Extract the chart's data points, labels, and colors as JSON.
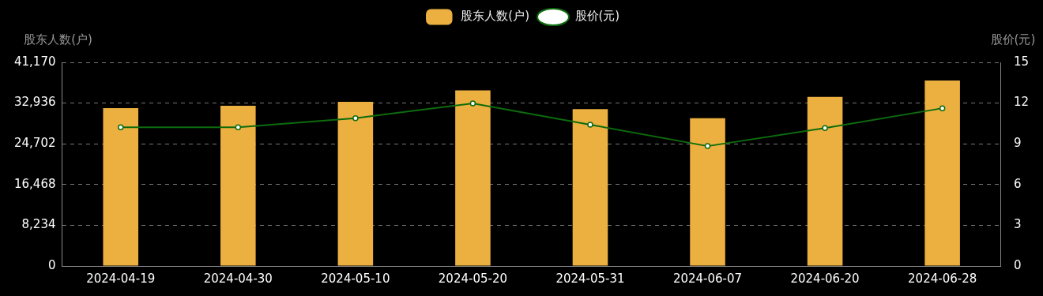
{
  "chart_data": {
    "type": "bar",
    "ylabel": "股东人数(户)",
    "y2label": "股价(元)",
    "categories": [
      "2024-04-19",
      "2024-04-30",
      "2024-05-10",
      "2024-05-20",
      "2024-05-31",
      "2024-06-07",
      "2024-06-20",
      "2024-06-28"
    ],
    "series": [
      {
        "name": "股东人数(户)",
        "color": "#ebb03f",
        "values": [
          31900,
          32400,
          33200,
          35500,
          31700,
          29900,
          34200,
          37500
        ]
      },
      {
        "name": "股价(元)",
        "type": "line",
        "axis": "y2",
        "color": "#0d6b0d",
        "values": [
          10.22,
          10.22,
          10.89,
          11.98,
          10.41,
          8.83,
          10.16,
          11.62
        ]
      }
    ],
    "ylim": [
      0,
      41170
    ],
    "yticks": [
      {
        "value": 0,
        "label": "0"
      },
      {
        "value": 8234,
        "label": "8,234"
      },
      {
        "value": 16468,
        "label": "16,468"
      },
      {
        "value": 24702,
        "label": "24,702"
      },
      {
        "value": 32936,
        "label": "32,936"
      },
      {
        "value": 41170,
        "label": "41,170"
      }
    ],
    "y2lim": [
      0,
      15
    ],
    "y2ticks": [
      0,
      3,
      6,
      9,
      12,
      15
    ],
    "grid": "y",
    "legend": "top",
    "marker": "circle"
  }
}
